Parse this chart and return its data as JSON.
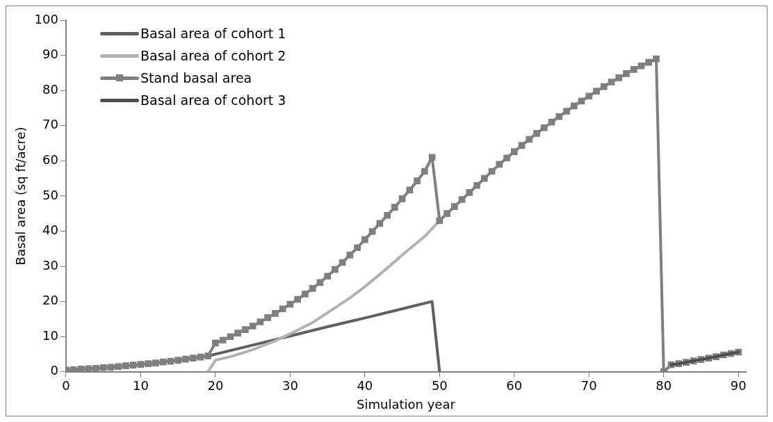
{
  "chart_data": {
    "type": "line",
    "xlabel": "Simulation year",
    "ylabel": "Basal area (sq ft/acre)",
    "xlim": [
      0,
      91
    ],
    "xticks": [
      0,
      10,
      20,
      30,
      40,
      50,
      60,
      70,
      80,
      90
    ],
    "ylim": [
      0,
      100
    ],
    "yticks": [
      0,
      10,
      20,
      30,
      40,
      50,
      60,
      70,
      80,
      90,
      100
    ],
    "grid": false,
    "legend": "top left",
    "line_style": "solid",
    "series": [
      {
        "name": "Basal area of cohort 1",
        "color": "#5f5f5f",
        "marker": "none",
        "x": [
          0,
          5,
          10,
          15,
          19,
          25,
          30,
          35,
          40,
          45,
          49,
          50
        ],
        "values": [
          0.5,
          1.2,
          2.1,
          3.3,
          4.5,
          7.6,
          10.2,
          12.8,
          15.3,
          17.9,
          20,
          0
        ]
      },
      {
        "name": "Basal area of cohort 2",
        "color": "#b2b2b2",
        "marker": "none",
        "x": [
          19,
          20,
          22,
          25,
          28,
          30,
          33,
          35,
          38,
          40,
          43,
          45,
          48,
          50
        ],
        "values": [
          0,
          3.3,
          4.3,
          6.3,
          8.8,
          10.8,
          14,
          16.8,
          21,
          24.2,
          29.5,
          33.2,
          38.5,
          43
        ]
      },
      {
        "name": "Stand basal area",
        "color": "#7f7f7f",
        "marker": "square",
        "x": [
          0,
          1,
          2,
          3,
          4,
          5,
          6,
          7,
          8,
          9,
          10,
          11,
          12,
          13,
          14,
          15,
          16,
          17,
          18,
          19,
          20,
          21,
          22,
          23,
          24,
          25,
          26,
          27,
          28,
          29,
          30,
          31,
          32,
          33,
          34,
          35,
          36,
          37,
          38,
          39,
          40,
          41,
          42,
          43,
          44,
          45,
          46,
          47,
          48,
          49,
          50,
          51,
          52,
          53,
          54,
          55,
          56,
          57,
          58,
          59,
          60,
          61,
          62,
          63,
          64,
          65,
          66,
          67,
          68,
          69,
          70,
          71,
          72,
          73,
          74,
          75,
          76,
          77,
          78,
          79,
          80,
          81,
          82,
          83,
          84,
          85,
          86,
          87,
          88,
          89,
          90
        ],
        "values": [
          0.5,
          0.6,
          0.8,
          0.9,
          1.0,
          1.2,
          1.3,
          1.5,
          1.7,
          1.9,
          2.1,
          2.3,
          2.5,
          2.8,
          3.0,
          3.3,
          3.6,
          3.9,
          4.2,
          4.5,
          8.2,
          9,
          10,
          11,
          12,
          13,
          14.2,
          15.4,
          16.6,
          17.9,
          19.2,
          20.6,
          22.1,
          23.7,
          25.4,
          27.2,
          29.1,
          31.1,
          33.2,
          35.3,
          37.6,
          39.9,
          42.2,
          44.5,
          46.8,
          49.2,
          51.7,
          54.3,
          57,
          61,
          43,
          45,
          47,
          49,
          51,
          53,
          55,
          57,
          59,
          60.8,
          62.6,
          64.4,
          66.1,
          67.8,
          69.4,
          71,
          72.6,
          74.1,
          75.6,
          77,
          78.4,
          79.8,
          81.1,
          82.4,
          83.6,
          84.8,
          86,
          87,
          88,
          89,
          0,
          2,
          2.3,
          2.7,
          3.1,
          3.5,
          3.9,
          4.3,
          4.8,
          5.2,
          5.6
        ]
      },
      {
        "name": "Basal area of cohort 3",
        "color": "#4d4d4d",
        "marker": "none",
        "x": [
          81,
          82,
          83,
          84,
          85,
          86,
          87,
          88,
          89,
          90
        ],
        "values": [
          2,
          2.3,
          2.7,
          3.1,
          3.5,
          3.9,
          4.3,
          4.8,
          5.2,
          5.6
        ]
      }
    ]
  }
}
